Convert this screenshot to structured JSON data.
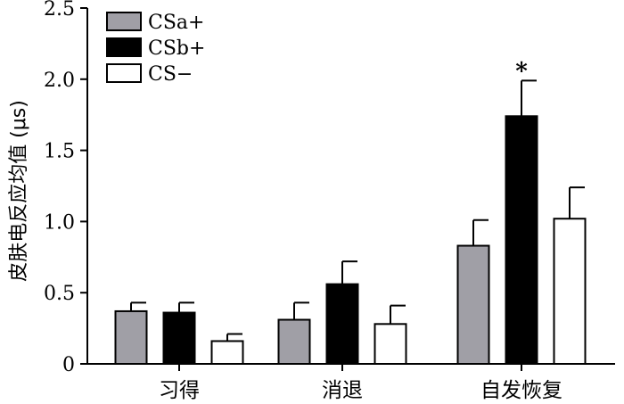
{
  "chart_data": {
    "type": "bar",
    "categories": [
      "习得",
      "消退",
      "自发恢复"
    ],
    "series": [
      {
        "name": "CSa+",
        "values": [
          0.37,
          0.31,
          0.83
        ],
        "errors": [
          0.06,
          0.12,
          0.18
        ],
        "color": "#a09fa6"
      },
      {
        "name": "CSb+",
        "values": [
          0.36,
          0.56,
          1.74
        ],
        "errors": [
          0.07,
          0.16,
          0.25
        ],
        "color": "#000000"
      },
      {
        "name": "CS−",
        "values": [
          0.16,
          0.28,
          1.02
        ],
        "errors": [
          0.05,
          0.13,
          0.22
        ],
        "color": "#ffffff"
      }
    ],
    "significance": [
      {
        "category": "自发恢复",
        "series": "CSb+",
        "label": "*"
      }
    ],
    "ylabel": "皮肤电反应均值 (μs)",
    "xlabel": "",
    "ylim": [
      0,
      2.5
    ],
    "yticks": [
      "0",
      "0.5",
      "1.0",
      "1.5",
      "2.0",
      "2.5"
    ],
    "legend_position": "top-left",
    "grid": false
  }
}
